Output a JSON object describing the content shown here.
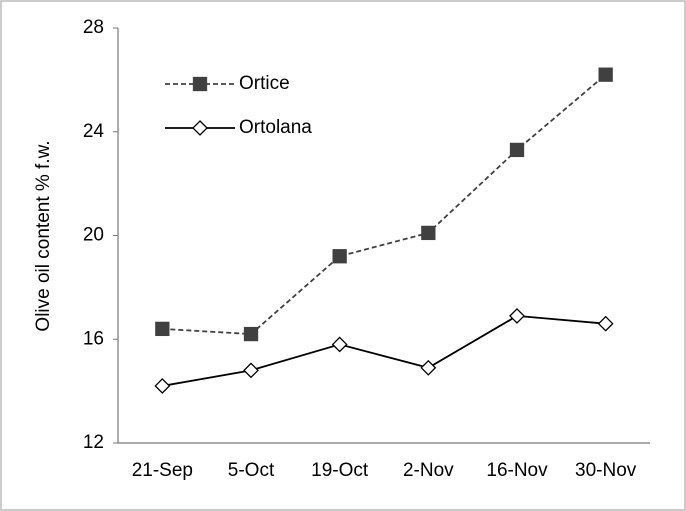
{
  "chart_data": {
    "type": "line",
    "y_label": "Olive oil content  % f.w.",
    "categories": [
      "21-Sep",
      "5-Oct",
      "19-Oct",
      "2-Nov",
      "16-Nov",
      "30-Nov"
    ],
    "series": [
      {
        "name": "Ortice",
        "color": "#404040",
        "dashed": true,
        "marker": "square",
        "values": [
          16.4,
          16.2,
          19.2,
          20.1,
          23.3,
          26.2
        ]
      },
      {
        "name": "Ortolana",
        "color": "#000000",
        "dashed": false,
        "marker": "diamond",
        "values": [
          14.2,
          14.8,
          15.8,
          14.9,
          16.9,
          16.6
        ]
      }
    ],
    "ylim": [
      12,
      28
    ],
    "yticks": [
      12,
      16,
      20,
      24,
      28
    ],
    "grid": false,
    "legend": "top-left"
  }
}
